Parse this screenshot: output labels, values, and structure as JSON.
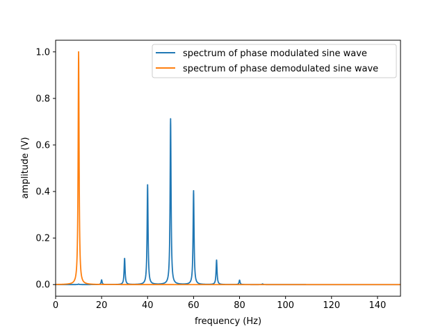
{
  "chart_data": {
    "type": "line",
    "xlabel": "frequency (Hz)",
    "ylabel": "amplitude (V)",
    "xlim": [
      0,
      150
    ],
    "ylim": [
      -0.05,
      1.05
    ],
    "xticks": [
      "0",
      "20",
      "40",
      "60",
      "80",
      "100",
      "120",
      "140"
    ],
    "yticks": [
      "0.0",
      "0.2",
      "0.4",
      "0.6",
      "0.8",
      "1.0"
    ],
    "grid": false,
    "legend_position": "top-right",
    "series": [
      {
        "name": "spectrum of phase modulated sine wave",
        "color": "#1f77b4",
        "peaks": [
          {
            "freq": 10,
            "amplitude": 0.002
          },
          {
            "freq": 20,
            "amplitude": 0.02
          },
          {
            "freq": 30,
            "amplitude": 0.112
          },
          {
            "freq": 40,
            "amplitude": 0.428
          },
          {
            "freq": 50,
            "amplitude": 0.712
          },
          {
            "freq": 60,
            "amplitude": 0.403
          },
          {
            "freq": 70,
            "amplitude": 0.105
          },
          {
            "freq": 80,
            "amplitude": 0.019
          },
          {
            "freq": 90,
            "amplitude": 0.003
          }
        ]
      },
      {
        "name": "spectrum of phase demodulated sine wave",
        "color": "#ff7f0e",
        "peaks": [
          {
            "freq": 10,
            "amplitude": 1.0
          }
        ]
      }
    ]
  }
}
